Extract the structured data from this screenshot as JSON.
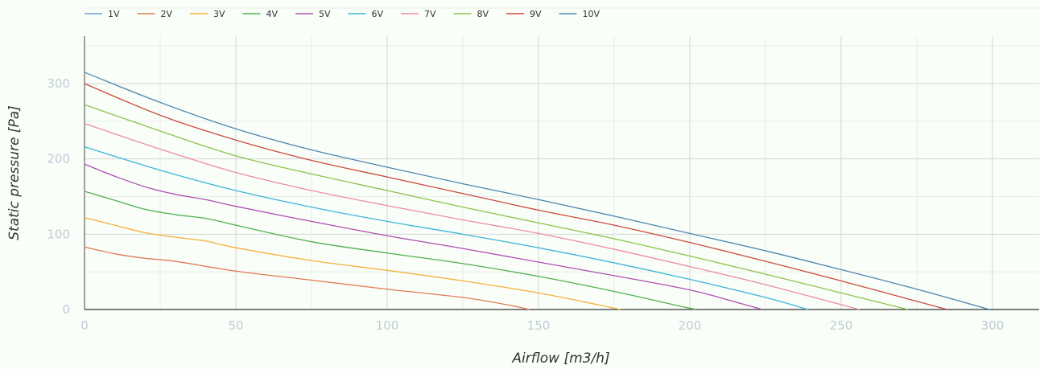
{
  "chart_data": {
    "type": "line",
    "title": "",
    "xlabel": "Airflow [m3/h]",
    "ylabel": "Static pressure [Pa]",
    "xlim": [
      0,
      315
    ],
    "ylim": [
      0,
      360
    ],
    "x_ticks": [
      0,
      50,
      100,
      150,
      200,
      250,
      300
    ],
    "y_ticks": [
      0,
      100,
      200,
      300
    ],
    "grid": true,
    "legend_position": "top-left",
    "series": [
      {
        "name": "1V",
        "color": "#6f9ccb",
        "points": []
      },
      {
        "name": "2V",
        "color": "#e07b52",
        "points": [
          [
            0,
            83
          ],
          [
            10,
            74
          ],
          [
            20,
            68
          ],
          [
            30,
            64
          ],
          [
            50,
            51
          ],
          [
            75,
            39
          ],
          [
            100,
            27
          ],
          [
            125,
            16
          ],
          [
            140,
            6
          ],
          [
            147,
            0
          ]
        ]
      },
      {
        "name": "3V",
        "color": "#f5b13d",
        "points": [
          [
            0,
            122
          ],
          [
            10,
            112
          ],
          [
            20,
            102
          ],
          [
            30,
            96
          ],
          [
            40,
            91
          ],
          [
            50,
            82
          ],
          [
            75,
            65
          ],
          [
            100,
            52
          ],
          [
            125,
            38
          ],
          [
            150,
            22
          ],
          [
            170,
            6
          ],
          [
            177,
            0
          ]
        ]
      },
      {
        "name": "4V",
        "color": "#4fb04f",
        "points": [
          [
            0,
            157
          ],
          [
            10,
            145
          ],
          [
            20,
            133
          ],
          [
            30,
            126
          ],
          [
            40,
            121
          ],
          [
            50,
            112
          ],
          [
            75,
            90
          ],
          [
            100,
            75
          ],
          [
            125,
            61
          ],
          [
            150,
            44
          ],
          [
            175,
            24
          ],
          [
            195,
            6
          ],
          [
            202,
            0
          ]
        ]
      },
      {
        "name": "5V",
        "color": "#b04fb0",
        "points": [
          [
            0,
            193
          ],
          [
            10,
            177
          ],
          [
            20,
            163
          ],
          [
            30,
            153
          ],
          [
            40,
            146
          ],
          [
            50,
            137
          ],
          [
            75,
            117
          ],
          [
            100,
            98
          ],
          [
            125,
            81
          ],
          [
            150,
            63
          ],
          [
            175,
            45
          ],
          [
            200,
            26
          ],
          [
            215,
            10
          ],
          [
            224,
            0
          ]
        ]
      },
      {
        "name": "6V",
        "color": "#3fb5d8",
        "points": [
          [
            0,
            216
          ],
          [
            25,
            185
          ],
          [
            50,
            158
          ],
          [
            75,
            136
          ],
          [
            100,
            117
          ],
          [
            125,
            100
          ],
          [
            150,
            82
          ],
          [
            175,
            62
          ],
          [
            200,
            40
          ],
          [
            225,
            16
          ],
          [
            239,
            0
          ]
        ]
      },
      {
        "name": "7V",
        "color": "#f08aa5",
        "points": [
          [
            0,
            247
          ],
          [
            25,
            213
          ],
          [
            50,
            182
          ],
          [
            75,
            158
          ],
          [
            100,
            138
          ],
          [
            125,
            119
          ],
          [
            150,
            101
          ],
          [
            175,
            80
          ],
          [
            200,
            57
          ],
          [
            225,
            33
          ],
          [
            256,
            0
          ]
        ]
      },
      {
        "name": "8V",
        "color": "#8cc34a",
        "points": [
          [
            0,
            272
          ],
          [
            25,
            237
          ],
          [
            50,
            204
          ],
          [
            75,
            180
          ],
          [
            100,
            158
          ],
          [
            125,
            136
          ],
          [
            150,
            115
          ],
          [
            175,
            94
          ],
          [
            200,
            71
          ],
          [
            225,
            47
          ],
          [
            250,
            22
          ],
          [
            272,
            0
          ]
        ]
      },
      {
        "name": "9V",
        "color": "#cf4a3f",
        "points": [
          [
            0,
            300
          ],
          [
            25,
            258
          ],
          [
            50,
            225
          ],
          [
            75,
            198
          ],
          [
            100,
            176
          ],
          [
            125,
            154
          ],
          [
            150,
            132
          ],
          [
            175,
            112
          ],
          [
            200,
            89
          ],
          [
            225,
            64
          ],
          [
            250,
            38
          ],
          [
            285,
            0
          ]
        ]
      },
      {
        "name": "10V",
        "color": "#4f86b0",
        "points": [
          [
            0,
            315
          ],
          [
            25,
            275
          ],
          [
            50,
            240
          ],
          [
            75,
            212
          ],
          [
            100,
            189
          ],
          [
            125,
            167
          ],
          [
            150,
            146
          ],
          [
            175,
            124
          ],
          [
            200,
            101
          ],
          [
            225,
            78
          ],
          [
            250,
            53
          ],
          [
            275,
            27
          ],
          [
            299,
            0
          ]
        ]
      }
    ]
  }
}
